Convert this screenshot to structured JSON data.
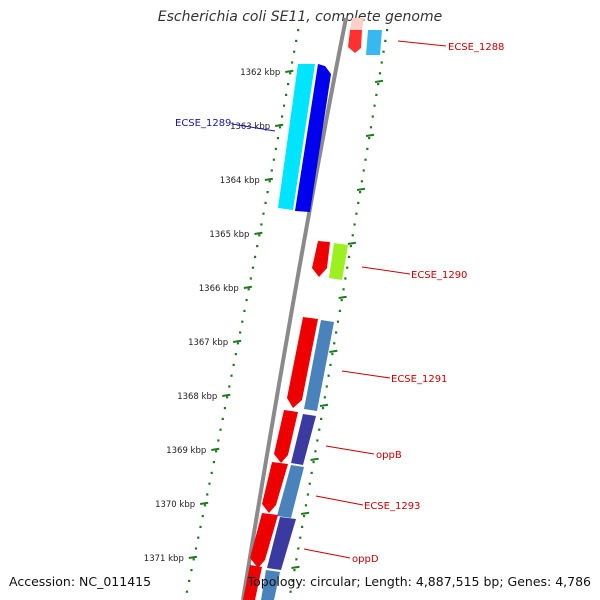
{
  "title": "Escherichia coli SE11, complete genome",
  "footer": {
    "accession": "Accession: NC_011415",
    "summary": "Topology: circular; Length: 4,887,515 bp; Genes: 4,786"
  },
  "colors": {
    "tick": "#1e7a1e",
    "backbone": "#8a8a8a",
    "label_red": "#cc0000",
    "label_blue": "#1414b4"
  },
  "ticks": [
    {
      "kbp": 1362,
      "label": "1362 kbp"
    },
    {
      "kbp": 1363,
      "label": "1363 kbp"
    },
    {
      "kbp": 1364,
      "label": "1364 kbp"
    },
    {
      "kbp": 1365,
      "label": "1365 kbp"
    },
    {
      "kbp": 1366,
      "label": "1366 kbp"
    },
    {
      "kbp": 1367,
      "label": "1367 kbp"
    },
    {
      "kbp": 1368,
      "label": "1368 kbp"
    },
    {
      "kbp": 1369,
      "label": "1369 kbp"
    },
    {
      "kbp": 1370,
      "label": "1370 kbp"
    },
    {
      "kbp": 1371,
      "label": "1371 kbp"
    }
  ],
  "features": [
    {
      "name": "ECSE_1288",
      "color": "#ff3030",
      "strand": "reverse",
      "kind": "gene"
    },
    {
      "name": "ECSE_1288-cds",
      "color": "#38b8f0",
      "strand": "reverse",
      "kind": "cds"
    },
    {
      "name": "ECSE_1289",
      "color": "#00e5ff",
      "strand": "forward",
      "kind": "cds"
    },
    {
      "name": "ECSE_1289-gene",
      "color": "#0000ee",
      "strand": "forward",
      "kind": "gene"
    },
    {
      "name": "ECSE_1290",
      "color": "#ee0000",
      "strand": "reverse",
      "kind": "gene"
    },
    {
      "name": "ECSE_1290-cds",
      "color": "#9cf020",
      "strand": "reverse",
      "kind": "cds"
    },
    {
      "name": "ECSE_1291",
      "color": "#ee0000",
      "strand": "reverse",
      "kind": "gene"
    },
    {
      "name": "ECSE_1291-cds",
      "color": "#4a82bc",
      "strand": "reverse",
      "kind": "cds"
    },
    {
      "name": "oppB",
      "color": "#ee0000",
      "strand": "reverse",
      "kind": "gene"
    },
    {
      "name": "oppB-cds",
      "color": "#3a3aa0",
      "strand": "reverse",
      "kind": "cds"
    },
    {
      "name": "ECSE_1293",
      "color": "#ee0000",
      "strand": "reverse",
      "kind": "gene"
    },
    {
      "name": "ECSE_1293-cds",
      "color": "#4a82bc",
      "strand": "reverse",
      "kind": "cds"
    },
    {
      "name": "oppD",
      "color": "#ee0000",
      "strand": "reverse",
      "kind": "gene"
    },
    {
      "name": "oppD-cds",
      "color": "#3a3aa0",
      "strand": "reverse",
      "kind": "cds"
    }
  ],
  "labels": [
    {
      "text": "ECSE_1288",
      "color": "red"
    },
    {
      "text": "ECSE_1289",
      "color": "blue"
    },
    {
      "text": "ECSE_1290",
      "color": "red"
    },
    {
      "text": "ECSE_1291",
      "color": "red"
    },
    {
      "text": "oppB",
      "color": "red"
    },
    {
      "text": "ECSE_1293",
      "color": "red"
    },
    {
      "text": "oppD",
      "color": "red"
    }
  ]
}
